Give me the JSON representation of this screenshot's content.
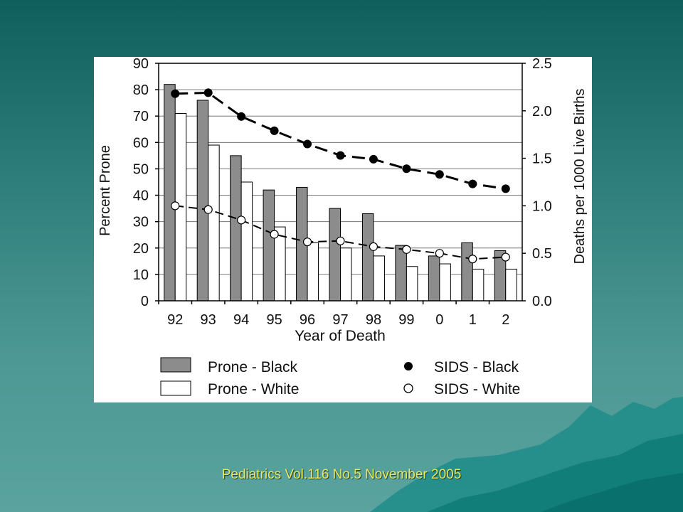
{
  "slide": {
    "citation": "Pediatrics Vol.116 No.5 November 2005",
    "background_color": "#2e7e7b",
    "citation_color": "#e8e85a"
  },
  "chart_data": {
    "type": "bar",
    "title": "",
    "categories": [
      "92",
      "93",
      "94",
      "95",
      "96",
      "97",
      "98",
      "99",
      "0",
      "1",
      "2"
    ],
    "xlabel": "Year of Death",
    "ylabel": "Percent Prone",
    "y2label": "Deaths per 1000 Live Births",
    "ylim": [
      0,
      90
    ],
    "yticks": [
      "0",
      "10",
      "20",
      "30",
      "40",
      "50",
      "60",
      "70",
      "80",
      "90"
    ],
    "y2lim": [
      0,
      2.5
    ],
    "y2ticks": [
      "0.0",
      "0.5",
      "1.0",
      "1.5",
      "2.0",
      "2.5"
    ],
    "grid": true,
    "legend_position": "bottom",
    "bar_series": [
      {
        "name": "Prone - Black",
        "values": [
          82,
          76,
          55,
          42,
          43,
          35,
          33,
          21,
          17,
          22,
          19
        ],
        "color": "#8c8c8c"
      },
      {
        "name": "Prone - White",
        "values": [
          71,
          59,
          45,
          28,
          22,
          20,
          17,
          13,
          14,
          12,
          12
        ],
        "color": "#ffffff"
      }
    ],
    "line_series": [
      {
        "name": "SIDS - Black",
        "axis": "right",
        "marker": "filled-circle",
        "values": [
          2.18,
          2.19,
          1.94,
          1.79,
          1.65,
          1.53,
          1.49,
          1.39,
          1.33,
          1.23,
          1.18
        ]
      },
      {
        "name": "SIDS - White",
        "axis": "right",
        "marker": "open-circle",
        "values": [
          1.0,
          0.96,
          0.85,
          0.7,
          0.62,
          0.63,
          0.57,
          0.54,
          0.5,
          0.44,
          0.46
        ]
      }
    ],
    "legend": [
      {
        "label": "Prone - Black",
        "symbol": "gray-box"
      },
      {
        "label": "SIDS - Black",
        "symbol": "filled-circle"
      },
      {
        "label": "Prone - White",
        "symbol": "white-box"
      },
      {
        "label": "SIDS - White",
        "symbol": "open-circle"
      }
    ]
  }
}
